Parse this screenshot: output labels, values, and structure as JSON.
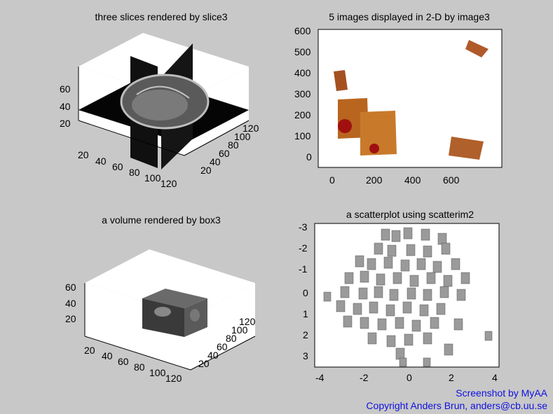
{
  "panels": {
    "slice3": {
      "title": "three slices rendered by slice3",
      "z_ticks": [
        "60",
        "40",
        "20"
      ],
      "x_ticks": [
        "20",
        "40",
        "60",
        "80",
        "100",
        "120"
      ],
      "y_ticks": [
        "20",
        "40",
        "60",
        "80",
        "100",
        "120"
      ]
    },
    "image3": {
      "title": "5 images displayed in 2-D by image3",
      "y_ticks": [
        "600",
        "500",
        "400",
        "300",
        "200",
        "100",
        "0"
      ],
      "x_ticks": [
        "0",
        "200",
        "400",
        "600"
      ]
    },
    "box3": {
      "title": "a volume rendered by box3",
      "z_ticks": [
        "60",
        "40",
        "20"
      ],
      "x_ticks": [
        "20",
        "40",
        "60",
        "80",
        "100",
        "120"
      ],
      "y_ticks": [
        "20",
        "40",
        "60",
        "80",
        "100",
        "120"
      ]
    },
    "scatterim2": {
      "title": "a scatterplot using scatterim2",
      "y_ticks": [
        "-3",
        "-2",
        "-1",
        "0",
        "1",
        "2",
        "3"
      ],
      "x_ticks": [
        "-4",
        "-2",
        "0",
        "2",
        "4"
      ]
    }
  },
  "credits": {
    "line1": "Screenshot by MyAA",
    "line2": "Copyright Anders Brun, anders@cb.uu.se"
  },
  "colors": {
    "window_bg": "#c8c8c8",
    "plot_bg": "#ffffff",
    "credit_text": "#1010e0"
  }
}
